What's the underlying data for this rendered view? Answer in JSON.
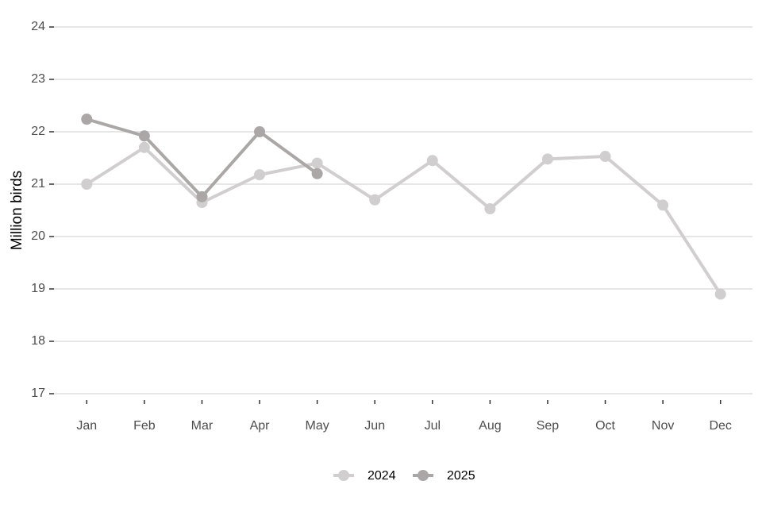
{
  "chart_data": {
    "type": "line",
    "y_label": "Million birds",
    "categories": [
      "Jan",
      "Feb",
      "Mar",
      "Apr",
      "May",
      "Jun",
      "Jul",
      "Aug",
      "Sep",
      "Oct",
      "Nov",
      "Dec"
    ],
    "series": [
      {
        "name": "2024",
        "color": "#d0cece",
        "values": [
          21.0,
          21.7,
          20.65,
          21.18,
          21.4,
          20.7,
          21.45,
          20.53,
          21.48,
          21.53,
          20.6,
          18.9
        ]
      },
      {
        "name": "2025",
        "color": "#aba7a7",
        "values": [
          22.24,
          21.92,
          20.76,
          22.0,
          21.2,
          null,
          null,
          null,
          null,
          null,
          null,
          null
        ]
      }
    ],
    "ylim": [
      17,
      24
    ],
    "yticks": [
      17,
      18,
      19,
      20,
      21,
      22,
      23,
      24
    ],
    "grid": true,
    "legend": "bottom"
  }
}
